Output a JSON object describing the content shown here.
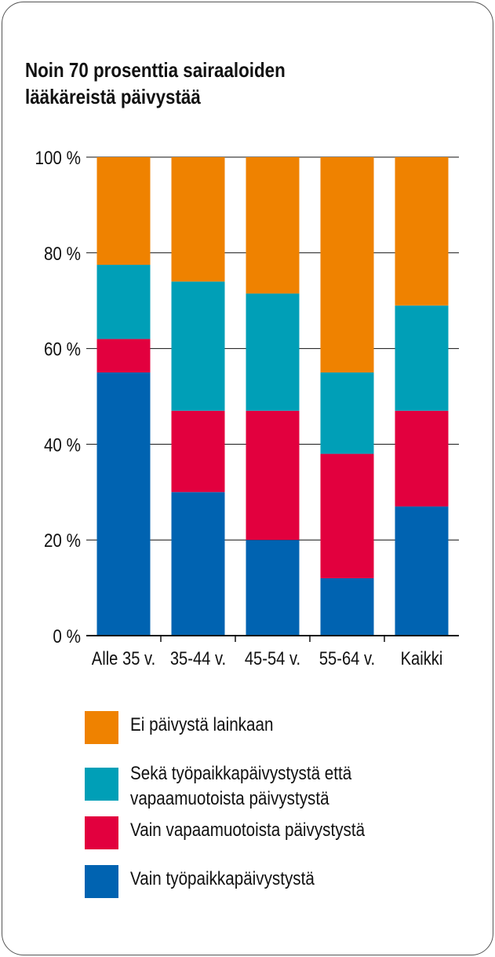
{
  "title_lines": [
    "Noin 70 prosenttia sairaaloiden",
    "lääkäreistä päivystää"
  ],
  "colors": {
    "ei_paivysta": "#ef8200",
    "molemmat": "#009fb7",
    "vain_vapaamuotoista": "#e2003e",
    "vain_tyopaikka": "#0063b1",
    "axis": "#111111"
  },
  "chart_data": {
    "type": "bar",
    "stacked": true,
    "title": "Noin 70 prosenttia sairaaloiden lääkäreistä päivystää",
    "categories": [
      "Alle 35 v.",
      "35-44 v.",
      "45-54 v.",
      "55-64 v.",
      "Kaikki"
    ],
    "y_ticks": [
      "0 %",
      "20 %",
      "40 %",
      "60 %",
      "80 %",
      "100 %"
    ],
    "ylim": [
      0,
      100
    ],
    "grid": true,
    "legend_position": "bottom",
    "series": [
      {
        "name": "Vain työpaikkapäivystystä",
        "color_key": "vain_tyopaikka",
        "values": [
          55,
          30,
          20,
          12,
          27
        ]
      },
      {
        "name": "Vain vapaamuotoista päivystystä",
        "color_key": "vain_vapaamuotoista",
        "values": [
          7,
          17,
          27,
          26,
          20
        ]
      },
      {
        "name": "Sekä työpaikkapäivystystä että vapaamuotoista päivystystä",
        "color_key": "molemmat",
        "values": [
          15.5,
          27,
          24.5,
          17,
          22
        ]
      },
      {
        "name": "Ei päivystä lainkaan",
        "color_key": "ei_paivysta",
        "values": [
          22.5,
          26,
          28.5,
          45,
          31
        ]
      }
    ]
  },
  "legend": [
    {
      "color_key": "ei_paivysta",
      "lines": [
        "Ei päivystä lainkaan"
      ]
    },
    {
      "color_key": "molemmat",
      "lines": [
        "Sekä työpaikkapäivystystä että",
        "vapaamuotoista päivystystä"
      ]
    },
    {
      "color_key": "vain_vapaamuotoista",
      "lines": [
        "Vain vapaamuotoista päivystystä"
      ]
    },
    {
      "color_key": "vain_tyopaikka",
      "lines": [
        "Vain työpaikkapäivystystä"
      ]
    }
  ]
}
